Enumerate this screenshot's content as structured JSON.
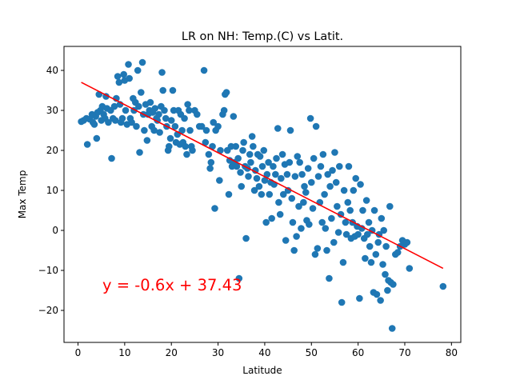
{
  "chart_data": {
    "type": "scatter",
    "title": "LR on NH: Temp.(C) vs Latit.",
    "xlabel": "Latitude",
    "ylabel": "Max Temp",
    "xlim": [
      -3,
      82
    ],
    "ylim": [
      -28,
      46
    ],
    "xticks": [
      0,
      10,
      20,
      30,
      40,
      50,
      60,
      70,
      80
    ],
    "yticks": [
      -20,
      -10,
      0,
      10,
      20,
      30,
      40
    ],
    "xtick_labels": [
      "0",
      "10",
      "20",
      "30",
      "40",
      "50",
      "60",
      "70",
      "80"
    ],
    "ytick_labels": [
      "−20",
      "−10",
      "0",
      "10",
      "20",
      "30",
      "40"
    ],
    "grid": false,
    "point_color": "#1f77b4",
    "line_color": "#ff0000",
    "regression": {
      "slope": -0.6,
      "intercept": 37.43,
      "x_range": [
        0.7,
        78.2
      ]
    },
    "equation_label": "y = -0.6x + 37.43",
    "points": [
      [
        0.7,
        27.2
      ],
      [
        1.2,
        27.5
      ],
      [
        1.8,
        28.0
      ],
      [
        2.0,
        21.5
      ],
      [
        2.5,
        27.8
      ],
      [
        3.0,
        29.0
      ],
      [
        3.2,
        27.0
      ],
      [
        3.5,
        26.5
      ],
      [
        3.8,
        28.5
      ],
      [
        4.0,
        23.0
      ],
      [
        4.2,
        29.5
      ],
      [
        4.5,
        34.0
      ],
      [
        4.8,
        30.0
      ],
      [
        5.0,
        27.5
      ],
      [
        5.2,
        31.0
      ],
      [
        5.5,
        29.0
      ],
      [
        5.8,
        28.0
      ],
      [
        6.0,
        33.5
      ],
      [
        6.2,
        30.5
      ],
      [
        6.5,
        27.0
      ],
      [
        7.0,
        30.0
      ],
      [
        7.2,
        18.0
      ],
      [
        7.5,
        28.0
      ],
      [
        7.8,
        31.0
      ],
      [
        8.0,
        27.5
      ],
      [
        8.2,
        33.0
      ],
      [
        8.5,
        38.5
      ],
      [
        8.8,
        37.0
      ],
      [
        9.0,
        31.5
      ],
      [
        9.2,
        27.0
      ],
      [
        9.5,
        28.0
      ],
      [
        9.8,
        39.0
      ],
      [
        10.0,
        37.5
      ],
      [
        10.2,
        30.0
      ],
      [
        10.5,
        26.5
      ],
      [
        10.8,
        41.5
      ],
      [
        11.0,
        38.0
      ],
      [
        11.2,
        28.0
      ],
      [
        11.5,
        27.0
      ],
      [
        11.8,
        33.0
      ],
      [
        12.0,
        30.0
      ],
      [
        12.3,
        32.0
      ],
      [
        12.5,
        26.0
      ],
      [
        12.8,
        40.0
      ],
      [
        13.0,
        31.0
      ],
      [
        13.2,
        19.5
      ],
      [
        13.5,
        34.5
      ],
      [
        13.8,
        42.0
      ],
      [
        14.0,
        29.0
      ],
      [
        14.2,
        25.0
      ],
      [
        14.5,
        31.5
      ],
      [
        14.8,
        22.5
      ],
      [
        15.0,
        29.0
      ],
      [
        15.3,
        30.0
      ],
      [
        15.5,
        32.0
      ],
      [
        15.8,
        26.0
      ],
      [
        16.0,
        29.5
      ],
      [
        16.3,
        25.0
      ],
      [
        16.5,
        30.5
      ],
      [
        16.8,
        28.0
      ],
      [
        17.0,
        27.5
      ],
      [
        17.3,
        29.0
      ],
      [
        17.5,
        24.5
      ],
      [
        17.8,
        31.0
      ],
      [
        18.0,
        39.5
      ],
      [
        18.2,
        35.0
      ],
      [
        18.5,
        30.0
      ],
      [
        18.8,
        28.0
      ],
      [
        19.0,
        26.0
      ],
      [
        19.3,
        20.0
      ],
      [
        19.5,
        21.0
      ],
      [
        19.8,
        23.0
      ],
      [
        20.0,
        27.5
      ],
      [
        20.3,
        35.0
      ],
      [
        20.5,
        30.0
      ],
      [
        20.8,
        26.0
      ],
      [
        21.0,
        22.0
      ],
      [
        21.3,
        24.0
      ],
      [
        21.5,
        30.0
      ],
      [
        21.8,
        21.5
      ],
      [
        22.0,
        29.0
      ],
      [
        22.3,
        25.0
      ],
      [
        22.5,
        22.0
      ],
      [
        22.8,
        28.0
      ],
      [
        23.0,
        21.0
      ],
      [
        23.3,
        19.0
      ],
      [
        23.5,
        31.5
      ],
      [
        23.8,
        30.0
      ],
      [
        24.0,
        25.0
      ],
      [
        24.3,
        21.0
      ],
      [
        24.5,
        20.0
      ],
      [
        25.0,
        30.0
      ],
      [
        25.5,
        29.0
      ],
      [
        26.0,
        26.0
      ],
      [
        26.5,
        26.0
      ],
      [
        27.0,
        40.0
      ],
      [
        27.3,
        22.0
      ],
      [
        27.5,
        25.0
      ],
      [
        28.0,
        19.0
      ],
      [
        28.3,
        15.5
      ],
      [
        28.5,
        17.0
      ],
      [
        28.8,
        21.0
      ],
      [
        29.0,
        27.0
      ],
      [
        29.3,
        5.5
      ],
      [
        29.5,
        25.0
      ],
      [
        30.0,
        26.0
      ],
      [
        30.3,
        12.5
      ],
      [
        30.5,
        20.0
      ],
      [
        31.0,
        29.0
      ],
      [
        31.3,
        30.0
      ],
      [
        31.5,
        34.0
      ],
      [
        31.8,
        34.5
      ],
      [
        32.0,
        20.0
      ],
      [
        32.3,
        9.0
      ],
      [
        32.5,
        17.5
      ],
      [
        32.8,
        21.0
      ],
      [
        33.0,
        16.0
      ],
      [
        33.3,
        28.5
      ],
      [
        33.5,
        17.0
      ],
      [
        33.8,
        21.0
      ],
      [
        34.0,
        16.0
      ],
      [
        34.3,
        18.0
      ],
      [
        34.5,
        -12.0
      ],
      [
        34.8,
        14.5
      ],
      [
        35.0,
        11.0
      ],
      [
        35.3,
        20.0
      ],
      [
        35.5,
        22.0
      ],
      [
        35.8,
        16.0
      ],
      [
        36.0,
        -2.0
      ],
      [
        36.3,
        15.5
      ],
      [
        36.5,
        13.5
      ],
      [
        36.8,
        19.0
      ],
      [
        37.0,
        17.0
      ],
      [
        37.3,
        23.5
      ],
      [
        37.5,
        21.0
      ],
      [
        37.8,
        10.0
      ],
      [
        38.0,
        15.0
      ],
      [
        38.3,
        13.0
      ],
      [
        38.5,
        19.0
      ],
      [
        38.8,
        11.0
      ],
      [
        39.0,
        18.5
      ],
      [
        39.3,
        9.0
      ],
      [
        39.5,
        16.0
      ],
      [
        39.8,
        20.0
      ],
      [
        40.0,
        12.5
      ],
      [
        40.3,
        2.0
      ],
      [
        40.5,
        14.0
      ],
      [
        40.8,
        17.0
      ],
      [
        41.0,
        9.0
      ],
      [
        41.3,
        12.0
      ],
      [
        41.5,
        3.0
      ],
      [
        41.8,
        16.0
      ],
      [
        42.0,
        11.5
      ],
      [
        42.3,
        14.0
      ],
      [
        42.5,
        18.0
      ],
      [
        42.8,
        25.5
      ],
      [
        43.0,
        7.0
      ],
      [
        43.3,
        4.0
      ],
      [
        43.5,
        13.0
      ],
      [
        43.8,
        19.0
      ],
      [
        44.0,
        9.0
      ],
      [
        44.3,
        16.5
      ],
      [
        44.5,
        -2.5
      ],
      [
        44.8,
        14.0
      ],
      [
        45.0,
        10.0
      ],
      [
        45.3,
        17.0
      ],
      [
        45.5,
        25.0
      ],
      [
        45.8,
        8.0
      ],
      [
        46.0,
        2.0
      ],
      [
        46.3,
        -5.0
      ],
      [
        46.5,
        13.5
      ],
      [
        46.8,
        -1.5
      ],
      [
        47.0,
        18.5
      ],
      [
        47.3,
        6.0
      ],
      [
        47.5,
        17.0
      ],
      [
        47.8,
        0.5
      ],
      [
        48.0,
        14.0
      ],
      [
        48.3,
        7.0
      ],
      [
        48.5,
        11.0
      ],
      [
        48.8,
        9.5
      ],
      [
        49.0,
        2.5
      ],
      [
        49.3,
        15.5
      ],
      [
        49.5,
        1.5
      ],
      [
        49.8,
        28.0
      ],
      [
        50.0,
        12.0
      ],
      [
        50.3,
        5.5
      ],
      [
        50.5,
        18.0
      ],
      [
        50.8,
        -6.0
      ],
      [
        51.0,
        26.0
      ],
      [
        51.3,
        -4.5
      ],
      [
        51.5,
        13.5
      ],
      [
        51.8,
        7.0
      ],
      [
        52.0,
        16.0
      ],
      [
        52.3,
        2.0
      ],
      [
        52.5,
        19.0
      ],
      [
        52.8,
        9.0
      ],
      [
        53.0,
        0.5
      ],
      [
        53.3,
        -5.0
      ],
      [
        53.5,
        14.0
      ],
      [
        53.8,
        -12.0
      ],
      [
        54.0,
        11.0
      ],
      [
        54.3,
        3.0
      ],
      [
        54.5,
        15.0
      ],
      [
        54.8,
        -3.0
      ],
      [
        55.0,
        19.5
      ],
      [
        55.3,
        12.0
      ],
      [
        55.5,
        6.0
      ],
      [
        55.8,
        -0.5
      ],
      [
        56.0,
        16.0
      ],
      [
        56.3,
        4.0
      ],
      [
        56.5,
        -18.0
      ],
      [
        56.8,
        -8.0
      ],
      [
        57.0,
        10.0
      ],
      [
        57.3,
        2.0
      ],
      [
        57.5,
        -1.0
      ],
      [
        57.8,
        7.0
      ],
      [
        58.0,
        16.0
      ],
      [
        58.3,
        5.0
      ],
      [
        58.5,
        -2.0
      ],
      [
        58.8,
        2.0
      ],
      [
        59.0,
        10.0
      ],
      [
        59.3,
        -1.5
      ],
      [
        59.5,
        13.0
      ],
      [
        59.8,
        1.0
      ],
      [
        60.0,
        -1.0
      ],
      [
        60.3,
        -17.0
      ],
      [
        60.5,
        11.5
      ],
      [
        60.8,
        0.5
      ],
      [
        61.0,
        5.0
      ],
      [
        61.3,
        -2.0
      ],
      [
        61.5,
        -7.0
      ],
      [
        61.8,
        7.5
      ],
      [
        62.0,
        -1.0
      ],
      [
        62.3,
        2.0
      ],
      [
        62.5,
        -4.0
      ],
      [
        62.8,
        -8.0
      ],
      [
        63.0,
        0.0
      ],
      [
        63.3,
        -15.5
      ],
      [
        63.5,
        5.0
      ],
      [
        63.8,
        -6.0
      ],
      [
        64.0,
        -16.0
      ],
      [
        64.3,
        -3.0
      ],
      [
        64.5,
        -1.0
      ],
      [
        64.8,
        -17.5
      ],
      [
        65.0,
        3.0
      ],
      [
        65.3,
        -8.5
      ],
      [
        65.5,
        0.0
      ],
      [
        65.8,
        -11.0
      ],
      [
        66.0,
        -4.0
      ],
      [
        66.3,
        -15.0
      ],
      [
        66.5,
        -12.5
      ],
      [
        66.8,
        6.0
      ],
      [
        67.0,
        -13.0
      ],
      [
        67.3,
        -24.5
      ],
      [
        67.5,
        -13.5
      ],
      [
        68.0,
        -6.0
      ],
      [
        68.5,
        -5.5
      ],
      [
        69.0,
        -4.0
      ],
      [
        69.5,
        -2.5
      ],
      [
        70.0,
        -3.5
      ],
      [
        70.5,
        -3.0
      ],
      [
        71.0,
        -9.5
      ],
      [
        78.2,
        -14.0
      ]
    ]
  }
}
